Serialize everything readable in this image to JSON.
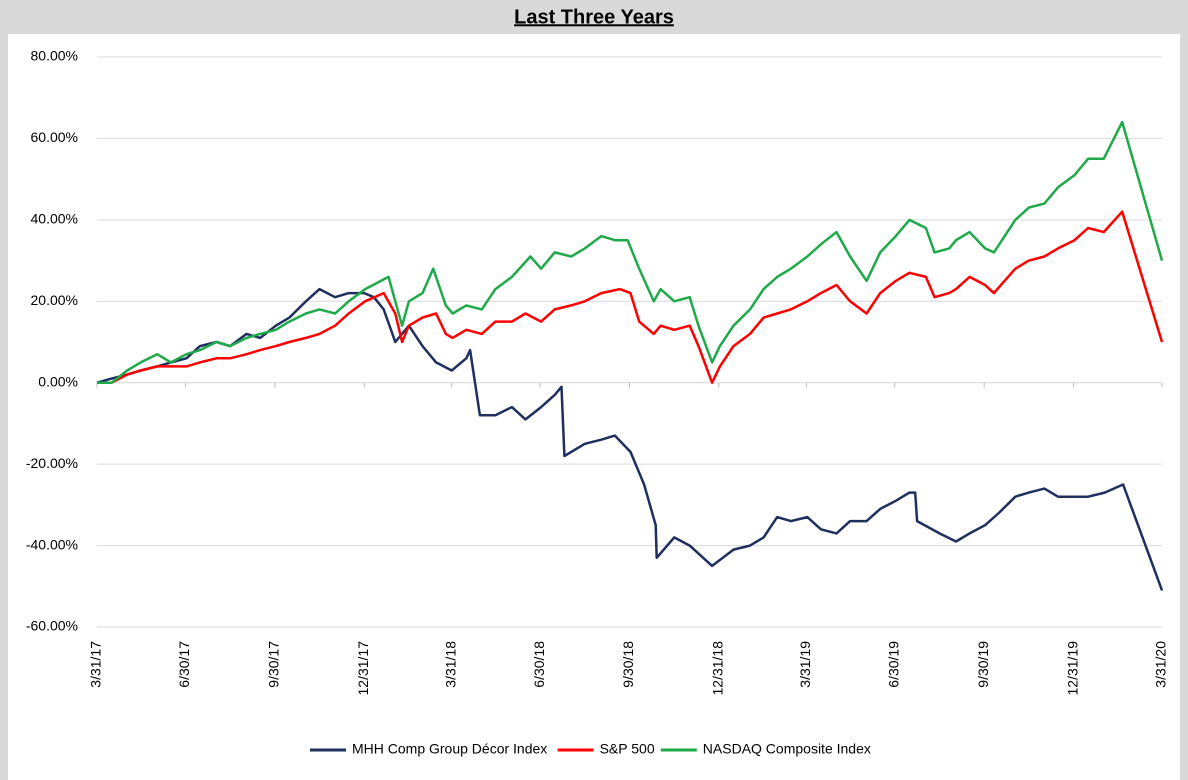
{
  "chart_data": {
    "type": "line",
    "title": "Last Three Years",
    "xlim": [
      "2017-03-31",
      "2020-03-31"
    ],
    "xticks": [
      {
        "value": "2017-03-31",
        "label": "3/31/17"
      },
      {
        "value": "2017-06-30",
        "label": "6/30/17"
      },
      {
        "value": "2017-09-30",
        "label": "9/30/17"
      },
      {
        "value": "2017-12-31",
        "label": "12/31/17"
      },
      {
        "value": "2018-03-31",
        "label": "3/31/18"
      },
      {
        "value": "2018-06-30",
        "label": "6/30/18"
      },
      {
        "value": "2018-09-30",
        "label": "9/30/18"
      },
      {
        "value": "2018-12-31",
        "label": "12/31/18"
      },
      {
        "value": "2019-03-31",
        "label": "3/31/19"
      },
      {
        "value": "2019-06-30",
        "label": "6/30/19"
      },
      {
        "value": "2019-09-30",
        "label": "9/30/19"
      },
      {
        "value": "2019-12-31",
        "label": "12/31/19"
      },
      {
        "value": "2020-03-31",
        "label": "3/31/20"
      }
    ],
    "ylim": [
      -60,
      80
    ],
    "yticks": [
      {
        "value": -60,
        "label": "-60.00%"
      },
      {
        "value": -40,
        "label": "-40.00%"
      },
      {
        "value": -20,
        "label": "-20.00%"
      },
      {
        "value": 0,
        "label": "0.00%"
      },
      {
        "value": 20,
        "label": "20.00%"
      },
      {
        "value": 40,
        "label": "40.00%"
      },
      {
        "value": 60,
        "label": "60.00%"
      },
      {
        "value": 80,
        "label": "80.00%"
      }
    ],
    "grid": true,
    "series": [
      {
        "name": "MHH Comp Group Décor Index",
        "color": "#1f2f5e",
        "x": [
          "2017-03-31",
          "2017-04-15",
          "2017-05-01",
          "2017-05-15",
          "2017-06-01",
          "2017-06-15",
          "2017-07-01",
          "2017-07-15",
          "2017-08-01",
          "2017-08-15",
          "2017-09-01",
          "2017-09-15",
          "2017-10-01",
          "2017-10-15",
          "2017-11-01",
          "2017-11-15",
          "2017-12-01",
          "2017-12-15",
          "2017-12-31",
          "2018-01-10",
          "2018-01-20",
          "2018-02-01",
          "2018-02-15",
          "2018-03-01",
          "2018-03-15",
          "2018-03-31",
          "2018-04-15",
          "2018-04-19",
          "2018-04-29",
          "2018-05-15",
          "2018-06-01",
          "2018-06-15",
          "2018-07-01",
          "2018-07-15",
          "2018-07-22",
          "2018-07-25",
          "2018-08-15",
          "2018-09-01",
          "2018-09-15",
          "2018-10-01",
          "2018-10-15",
          "2018-10-27",
          "2018-10-28",
          "2018-11-15",
          "2018-12-01",
          "2018-12-24",
          "2019-01-15",
          "2019-02-01",
          "2019-02-15",
          "2019-03-01",
          "2019-03-15",
          "2019-04-01",
          "2019-04-15",
          "2019-05-01",
          "2019-05-15",
          "2019-06-01",
          "2019-06-15",
          "2019-07-01",
          "2019-07-15",
          "2019-07-21",
          "2019-07-23",
          "2019-08-15",
          "2019-09-01",
          "2019-09-15",
          "2019-10-01",
          "2019-10-15",
          "2019-11-01",
          "2019-11-15",
          "2019-12-01",
          "2019-12-15",
          "2020-01-01",
          "2020-01-15",
          "2020-02-01",
          "2020-02-20",
          "2020-03-31"
        ],
        "values": [
          0,
          1,
          2,
          3,
          4,
          5,
          6,
          9,
          10,
          9,
          12,
          11,
          14,
          16,
          20,
          23,
          21,
          22,
          22,
          21,
          18,
          10,
          14,
          9,
          5,
          3,
          6,
          8,
          -8,
          -8,
          -6,
          -9,
          -6,
          -3,
          -1,
          -18,
          -15,
          -14,
          -13,
          -17,
          -25,
          -35,
          -43,
          -38,
          -40,
          -45,
          -41,
          -40,
          -38,
          -33,
          -34,
          -33,
          -36,
          -37,
          -34,
          -34,
          -31,
          -29,
          -27,
          -27,
          -34,
          -37,
          -39,
          -37,
          -35,
          -32,
          -28,
          -27,
          -26,
          -28,
          -28,
          -28,
          -27,
          -25,
          -51
        ]
      },
      {
        "name": "S&P 500",
        "color": "#ff0000",
        "x": [
          "2017-03-31",
          "2017-04-15",
          "2017-05-01",
          "2017-05-15",
          "2017-06-01",
          "2017-06-15",
          "2017-07-01",
          "2017-07-15",
          "2017-08-01",
          "2017-08-15",
          "2017-09-01",
          "2017-09-15",
          "2017-10-01",
          "2017-10-15",
          "2017-11-01",
          "2017-11-15",
          "2017-12-01",
          "2017-12-15",
          "2018-01-01",
          "2018-01-20",
          "2018-02-01",
          "2018-02-08",
          "2018-02-15",
          "2018-03-01",
          "2018-03-15",
          "2018-03-25",
          "2018-04-01",
          "2018-04-15",
          "2018-05-01",
          "2018-05-15",
          "2018-06-01",
          "2018-06-15",
          "2018-07-01",
          "2018-07-15",
          "2018-08-01",
          "2018-08-15",
          "2018-09-01",
          "2018-09-20",
          "2018-10-01",
          "2018-10-10",
          "2018-10-25",
          "2018-11-01",
          "2018-11-15",
          "2018-12-01",
          "2018-12-10",
          "2018-12-24",
          "2019-01-01",
          "2019-01-15",
          "2019-02-01",
          "2019-02-15",
          "2019-03-01",
          "2019-03-15",
          "2019-04-01",
          "2019-04-15",
          "2019-05-01",
          "2019-05-15",
          "2019-06-01",
          "2019-06-15",
          "2019-07-01",
          "2019-07-15",
          "2019-08-01",
          "2019-08-10",
          "2019-08-25",
          "2019-09-01",
          "2019-09-15",
          "2019-10-01",
          "2019-10-10",
          "2019-11-01",
          "2019-11-15",
          "2019-12-01",
          "2019-12-15",
          "2020-01-01",
          "2020-01-15",
          "2020-01-31",
          "2020-02-19",
          "2020-03-31"
        ],
        "values": [
          0,
          0,
          2,
          3,
          4,
          4,
          4,
          5,
          6,
          6,
          7,
          8,
          9,
          10,
          11,
          12,
          14,
          17,
          20,
          22,
          17,
          10,
          14,
          16,
          17,
          12,
          11,
          13,
          12,
          15,
          15,
          17,
          15,
          18,
          19,
          20,
          22,
          23,
          22,
          15,
          12,
          14,
          13,
          14,
          9,
          0,
          4,
          9,
          12,
          16,
          17,
          18,
          20,
          22,
          24,
          20,
          17,
          22,
          25,
          27,
          26,
          21,
          22,
          23,
          26,
          24,
          22,
          28,
          30,
          31,
          33,
          35,
          38,
          37,
          42,
          10
        ]
      },
      {
        "name": "NASDAQ Composite Index",
        "color": "#1faa4a",
        "x": [
          "2017-03-31",
          "2017-04-15",
          "2017-05-01",
          "2017-05-15",
          "2017-06-01",
          "2017-06-15",
          "2017-07-01",
          "2017-07-15",
          "2017-08-01",
          "2017-08-15",
          "2017-09-01",
          "2017-09-15",
          "2017-10-01",
          "2017-10-15",
          "2017-11-01",
          "2017-11-15",
          "2017-12-01",
          "2017-12-15",
          "2018-01-01",
          "2018-01-25",
          "2018-02-08",
          "2018-02-15",
          "2018-03-01",
          "2018-03-12",
          "2018-03-25",
          "2018-04-01",
          "2018-04-15",
          "2018-05-01",
          "2018-05-15",
          "2018-06-01",
          "2018-06-20",
          "2018-07-01",
          "2018-07-15",
          "2018-08-01",
          "2018-08-15",
          "2018-09-01",
          "2018-09-15",
          "2018-09-28",
          "2018-10-10",
          "2018-10-25",
          "2018-11-01",
          "2018-11-15",
          "2018-12-01",
          "2018-12-10",
          "2018-12-24",
          "2019-01-01",
          "2019-01-15",
          "2019-02-01",
          "2019-02-15",
          "2019-03-01",
          "2019-03-15",
          "2019-04-01",
          "2019-04-15",
          "2019-05-01",
          "2019-05-15",
          "2019-06-01",
          "2019-06-15",
          "2019-07-01",
          "2019-07-15",
          "2019-08-01",
          "2019-08-10",
          "2019-08-25",
          "2019-09-01",
          "2019-09-15",
          "2019-10-01",
          "2019-10-10",
          "2019-11-01",
          "2019-11-15",
          "2019-12-01",
          "2019-12-15",
          "2020-01-01",
          "2020-01-15",
          "2020-01-31",
          "2020-02-19",
          "2020-03-31"
        ],
        "values": [
          0,
          0,
          3,
          5,
          7,
          5,
          7,
          8,
          10,
          9,
          11,
          12,
          13,
          15,
          17,
          18,
          17,
          20,
          23,
          26,
          14,
          20,
          22,
          28,
          19,
          17,
          19,
          18,
          23,
          26,
          31,
          28,
          32,
          31,
          33,
          36,
          35,
          35,
          28,
          20,
          23,
          20,
          21,
          14,
          5,
          9,
          14,
          18,
          23,
          26,
          28,
          31,
          34,
          37,
          31,
          25,
          32,
          36,
          40,
          38,
          32,
          33,
          35,
          37,
          33,
          32,
          40,
          43,
          44,
          48,
          51,
          55,
          55,
          64,
          30
        ]
      }
    ]
  }
}
